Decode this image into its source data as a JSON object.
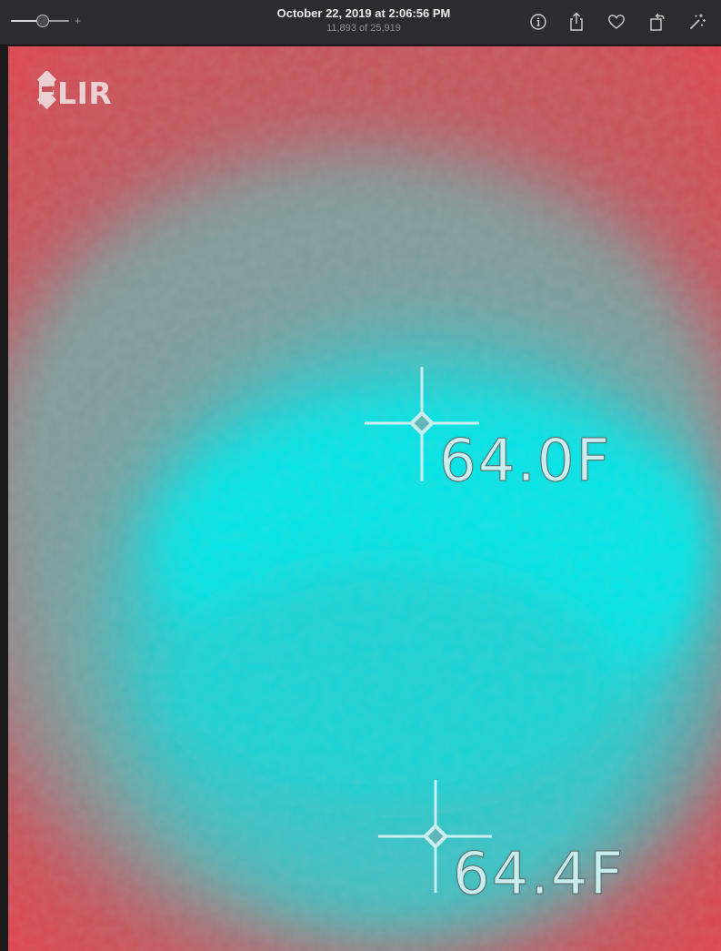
{
  "toolbar": {
    "zoom": {
      "plus_label": "+",
      "level": 0.55
    },
    "title": "October 22, 2019 at 2:06:56 PM",
    "subtitle": "11,893 of 25,919",
    "icons": [
      "info-icon",
      "share-icon",
      "heart-icon",
      "rotate-icon",
      "magic-wand-icon"
    ]
  },
  "photo": {
    "logo": {
      "text": "FLIR"
    },
    "readings": [
      {
        "value": "64.0F"
      },
      {
        "value": "64.4F"
      }
    ],
    "colors": {
      "hot": "#e43d4a",
      "warm": "#c5535a",
      "mid": "#7f9b9b",
      "cool": "#34c4c6",
      "cold": "#02e6e8",
      "overlay": "#c8eef0"
    }
  }
}
